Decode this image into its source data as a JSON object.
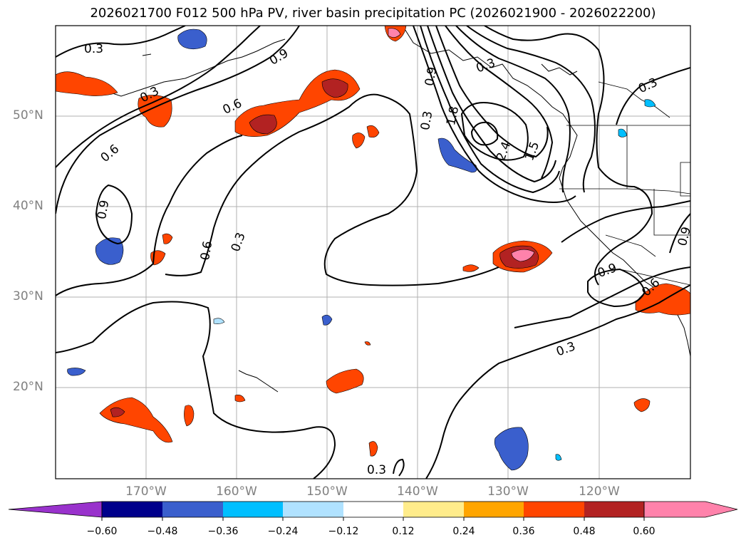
{
  "title": "2026021700 F012 500 hPa PV, river basin precipitation PC (2026021900 - 2026022200)",
  "lat_labels": [
    "50°N",
    "40°N",
    "30°N",
    "20°N"
  ],
  "lon_labels": [
    "170°W",
    "160°W",
    "150°W",
    "140°W",
    "130°W",
    "120°W"
  ],
  "contour_labels": [
    "0.3",
    "0.3",
    "0.6",
    "0.9",
    "0.6",
    "0.9",
    "0.6",
    "0.3",
    "0.3",
    "1.8",
    "2.4",
    "1.5",
    "0.3",
    "0.9",
    "0.3",
    "0.9",
    "0.6",
    "0.3",
    "0.9",
    "0.3"
  ],
  "colorbar": {
    "ticks": [
      "−0.60",
      "−0.48",
      "−0.36",
      "−0.24",
      "−0.12",
      "0.12",
      "0.24",
      "0.36",
      "0.48",
      "0.60"
    ],
    "colors": [
      "#9932cc",
      "#00008b",
      "#3a5fcd",
      "#00bfff",
      "#b0e2ff",
      "#ffffff",
      "#ffec8b",
      "#ffa500",
      "#ff4500",
      "#b22222",
      "#ff82ab"
    ]
  }
}
